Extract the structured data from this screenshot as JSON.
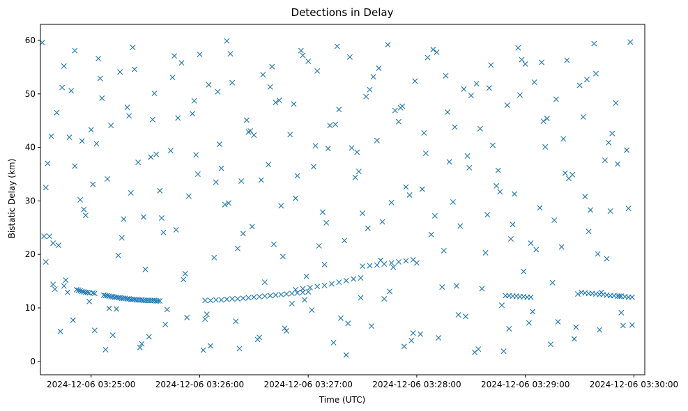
{
  "chart_data": {
    "type": "scatter",
    "title": "Detections in Delay",
    "xlabel": "Time (UTC)",
    "ylabel": "Bistatic Delay (km)",
    "x_tick_labels": [
      "2024-12-06 03:25:00",
      "2024-12-06 03:26:00",
      "2024-12-06 03:27:00",
      "2024-12-06 03:28:00",
      "2024-12-06 03:29:00",
      "2024-12-06 03:30:00"
    ],
    "x_ticks_seconds_after_0325": [
      0,
      60,
      120,
      180,
      240,
      300
    ],
    "xlim_seconds_after_0325": [
      -28,
      306
    ],
    "y_ticks": [
      0,
      10,
      20,
      30,
      40,
      50,
      60
    ],
    "ylim": [
      -2.5,
      63
    ],
    "marker": "x",
    "grid": false,
    "color": "#1f77b4",
    "series": [
      {
        "name": "",
        "x_seconds_after_0325": [
          -8,
          -7,
          -6,
          -5,
          -4,
          -3,
          -2,
          -1,
          -20,
          -15,
          -25,
          -13,
          1,
          2,
          7,
          8,
          9,
          10,
          11,
          12,
          13,
          14,
          15,
          16,
          17,
          18,
          19,
          20,
          21,
          22,
          23,
          24,
          25,
          26,
          27,
          28,
          29,
          30,
          31,
          32,
          33,
          34,
          35,
          36,
          37,
          38,
          63,
          66,
          69,
          72,
          75,
          78,
          81,
          84,
          87,
          90,
          93,
          96,
          99,
          102,
          105,
          108,
          111,
          114,
          117,
          120,
          113,
          117,
          121,
          125,
          129,
          133,
          137,
          141,
          145,
          149,
          150,
          154,
          158,
          162,
          166,
          170,
          174,
          178,
          229,
          231,
          233,
          235,
          237,
          239,
          241,
          243,
          271,
          273,
          275,
          277,
          279,
          281,
          283,
          285,
          287,
          289,
          291,
          293,
          295,
          297,
          299,
          -27,
          -25,
          -23,
          -21,
          -18,
          -15,
          -12,
          -9,
          -4,
          0,
          2,
          5,
          8,
          11,
          14,
          17,
          20,
          23,
          26,
          29,
          32,
          35,
          38,
          41,
          44,
          47,
          50,
          53,
          56,
          59,
          62,
          65,
          68,
          71,
          74,
          77,
          80,
          83,
          86,
          89,
          92,
          95,
          98,
          101,
          104,
          107,
          110,
          113,
          116,
          119,
          122,
          125,
          128,
          131,
          134,
          137,
          140,
          143,
          146,
          149,
          152,
          155,
          158,
          161,
          164,
          167,
          170,
          173,
          176,
          179,
          182,
          185,
          188,
          191,
          194,
          197,
          200,
          203,
          206,
          209,
          212,
          215,
          218,
          221,
          224,
          227,
          230,
          233,
          236,
          239,
          242,
          245,
          248,
          251,
          254,
          257,
          260,
          263,
          266,
          269,
          272,
          275,
          278,
          281,
          284,
          287,
          290,
          293,
          296,
          299,
          -26,
          -22,
          -17,
          -11,
          -6,
          -1,
          4,
          9,
          15,
          21,
          27,
          33,
          39,
          45,
          51,
          57,
          63,
          69,
          75,
          81,
          87,
          93,
          99,
          105,
          111,
          117,
          123,
          129,
          135,
          141,
          147,
          153,
          159,
          165,
          171,
          177,
          183,
          189,
          195,
          201,
          207,
          213,
          219,
          225,
          231,
          237,
          243,
          249,
          255,
          261,
          267,
          273,
          279,
          285,
          291,
          297,
          -24,
          -19,
          -14,
          -9,
          -3,
          3,
          10,
          16,
          22,
          28,
          34,
          40,
          46,
          52,
          58,
          64,
          70,
          76,
          82,
          88,
          94,
          100,
          106,
          112,
          118,
          124,
          130,
          136,
          142,
          148,
          154,
          160,
          166,
          172,
          178,
          184,
          190,
          196,
          202,
          208,
          214,
          220,
          226,
          232,
          238,
          244,
          250,
          256,
          262,
          268,
          274,
          280,
          286,
          292,
          298,
          -21,
          -16,
          -10,
          -5,
          1,
          6,
          12,
          18,
          24,
          30,
          36,
          42,
          48,
          54,
          60,
          66,
          72,
          78,
          84,
          90,
          96,
          102,
          108,
          114,
          120,
          126,
          132,
          138,
          144,
          150,
          156,
          162,
          168,
          174,
          180,
          186,
          192,
          198,
          204,
          210,
          216,
          222,
          228,
          234,
          240,
          246,
          252,
          258,
          264,
          270,
          276,
          282,
          288,
          294
        ],
        "y": [
          13.4,
          13.3,
          13.2,
          13.1,
          13.0,
          12.9,
          12.9,
          12.8,
          13.5,
          14.1,
          18.6,
          12.9,
          12.8,
          12.7,
          12.4,
          12.3,
          12.3,
          12.2,
          12.1,
          12.1,
          12.0,
          12.0,
          11.9,
          11.9,
          11.8,
          11.8,
          11.8,
          11.7,
          11.7,
          11.6,
          11.6,
          11.6,
          11.5,
          11.5,
          11.5,
          11.5,
          11.4,
          11.4,
          11.4,
          11.4,
          11.4,
          11.4,
          11.4,
          11.3,
          11.3,
          11.3,
          11.4,
          11.4,
          11.5,
          11.5,
          11.6,
          11.7,
          11.7,
          11.8,
          11.9,
          12.0,
          12.1,
          12.2,
          12.3,
          12.4,
          12.5,
          12.6,
          12.7,
          12.8,
          12.9,
          13.0,
          13.4,
          13.6,
          13.8,
          14.0,
          14.2,
          14.5,
          14.8,
          15.1,
          15.4,
          15.6,
          17.8,
          17.9,
          18.0,
          18.2,
          18.4,
          18.6,
          18.8,
          19.0,
          12.3,
          12.3,
          12.2,
          12.2,
          12.1,
          12.1,
          12.0,
          12.0,
          12.9,
          12.8,
          12.7,
          12.7,
          12.6,
          12.5,
          12.5,
          12.4,
          12.3,
          12.3,
          12.2,
          12.2,
          12.1,
          12.0,
          12.0,
          59.6,
          32.5,
          23.4,
          14.4,
          21.7,
          55.2,
          41.9,
          36.5,
          28.4,
          43.3,
          5.8,
          52.9,
          2.2,
          44.1,
          9.8,
          23.1,
          47.5,
          58.7,
          37.2,
          27.0,
          4.6,
          50.1,
          31.9,
          6.9,
          39.4,
          24.6,
          55.8,
          8.2,
          46.3,
          35.0,
          2.1,
          51.7,
          19.4,
          40.6,
          29.3,
          57.5,
          7.5,
          33.7,
          45.1,
          25.2,
          4.1,
          53.6,
          36.8,
          21.9,
          48.8,
          6.2,
          42.4,
          30.5,
          58.1,
          15.9,
          9.6,
          54.3,
          27.9,
          39.8,
          3.5,
          47.1,
          22.6,
          56.9,
          34.4,
          11.9,
          49.5,
          6.6,
          41.3,
          26.1,
          59.2,
          17.6,
          44.8,
          2.8,
          31.1,
          52.4,
          5.1,
          38.9,
          23.7,
          57.8,
          13.9,
          46.6,
          29.8,
          8.7,
          50.9,
          36.2,
          1.7,
          43.5,
          20.3,
          55.4,
          32.8,
          10.5,
          47.9,
          25.6,
          58.6,
          16.8,
          7.2,
          52.2,
          28.7,
          40.1,
          3.2,
          49.0,
          21.4,
          56.3,
          34.9,
          12.6,
          45.7,
          24.3,
          59.4,
          5.9,
          37.6,
          28.1,
          48.3,
          9.1,
          39.5,
          6.8,
          23.4,
          42.1,
          5.6,
          50.6,
          30.2,
          11.2,
          56.6,
          34.1,
          19.8,
          45.9,
          2.6,
          38.2,
          26.8,
          53.1,
          15.3,
          48.7,
          7.9,
          33.5,
          59.9,
          21.1,
          42.9,
          4.5,
          51.3,
          29.1,
          10.8,
          57.2,
          36.4,
          18.1,
          44.3,
          1.2,
          39.1,
          24.9,
          54.8,
          13.1,
          47.4,
          3.9,
          32.2,
          58.3,
          20.7,
          43.8,
          8.4,
          51.9,
          27.4,
          35.7,
          6.1,
          49.8,
          22.1,
          55.9,
          14.7,
          41.6,
          4.2,
          30.8,
          53.8,
          19.2,
          36.9,
          28.6,
          37.0,
          46.5,
          15.2,
          58.1,
          27.3,
          40.7,
          9.9,
          54.1,
          31.5,
          3.3,
          45.2,
          24.1,
          57.1,
          16.4,
          38.6,
          8.8,
          50.4,
          29.6,
          2.4,
          43.1,
          33.9,
          55.1,
          19.6,
          48.1,
          11.5,
          40.3,
          25.9,
          58.9,
          7.1,
          35.5,
          50.8,
          18.9,
          29.7,
          47.7,
          5.3,
          42.7,
          27.2,
          53.4,
          14.1,
          38.4,
          2.3,
          51.1,
          31.7,
          22.9,
          56.4,
          9.3,
          44.9,
          26.4,
          35.2,
          6.4,
          52.7,
          20.1,
          40.9,
          12.2,
          59.7,
          22.1,
          51.2,
          7.7,
          41.2,
          33.1,
          49.2,
          4.9,
          26.6,
          54.6,
          17.2,
          38.7,
          9.7,
          45.5,
          30.9,
          57.4,
          2.9,
          36.1,
          52.1,
          23.9,
          42.3,
          14.8,
          48.4,
          5.7,
          34.7,
          56.1,
          21.6,
          44.1,
          8.1,
          39.9,
          27.7,
          53.2,
          11.7,
          46.9,
          32.6,
          18.4,
          56.8,
          4.4,
          37.3,
          25.3,
          49.7,
          13.6,
          40.4,
          1.9,
          31.3,
          55.6,
          20.9,
          45.4,
          7.4,
          34.2,
          51.6,
          28.3,
          12.9,
          42.6,
          6.7
        ]
      }
    ]
  }
}
